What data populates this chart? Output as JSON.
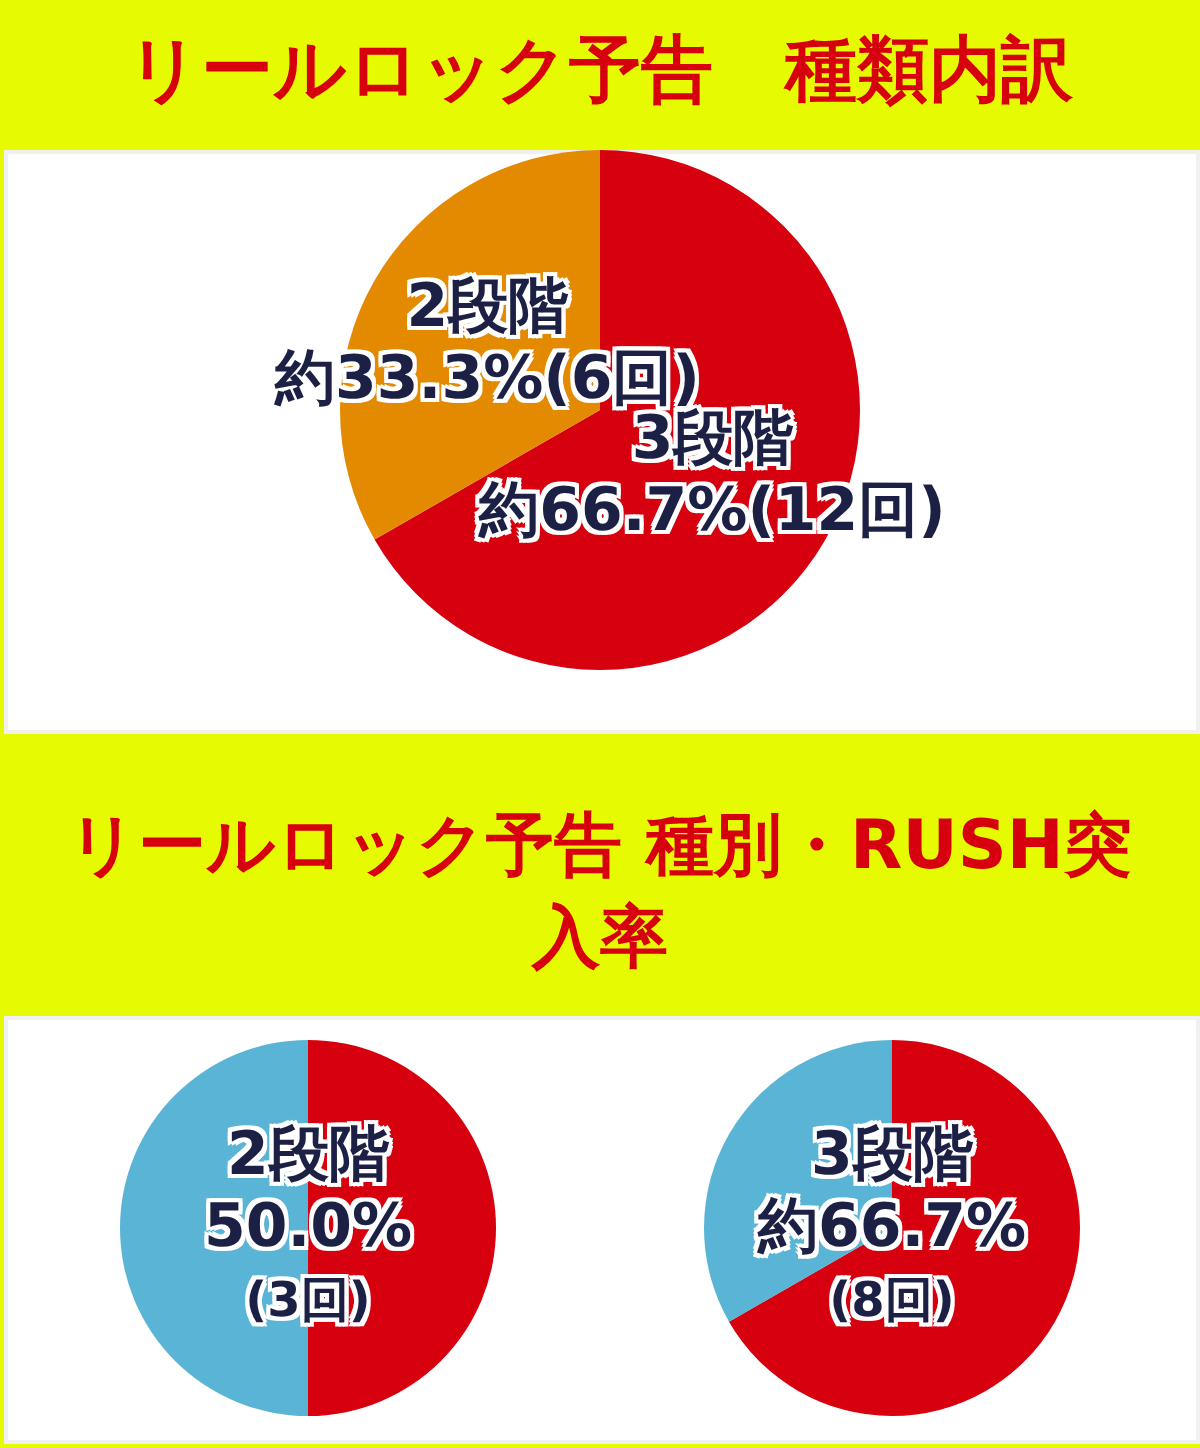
{
  "chart_data": [
    {
      "type": "pie",
      "title": "リールロック予告　種類内訳",
      "categories": [
        "3段階",
        "2段階"
      ],
      "values": [
        66.7,
        33.3
      ],
      "colors": [
        "#d7000f",
        "#e38a00"
      ],
      "value_labels": [
        "約66.7%(12回)",
        "約33.3%(6回)"
      ]
    },
    {
      "type": "pie",
      "title": "リールロック予告 種別・RUSH突入率",
      "categories": [
        null,
        null
      ],
      "values": [
        50,
        50
      ],
      "colors": [
        "#d7000f",
        "#5ab4d6"
      ],
      "annotations": [
        "2段階",
        "50.0%",
        "(3回)"
      ]
    },
    {
      "type": "pie",
      "categories": [
        null,
        null
      ],
      "values": [
        66.7,
        33.3
      ],
      "colors": [
        "#d7000f",
        "#5ab4d6"
      ],
      "annotations": [
        "3段階",
        "約66.7%",
        "(8回)"
      ]
    }
  ]
}
